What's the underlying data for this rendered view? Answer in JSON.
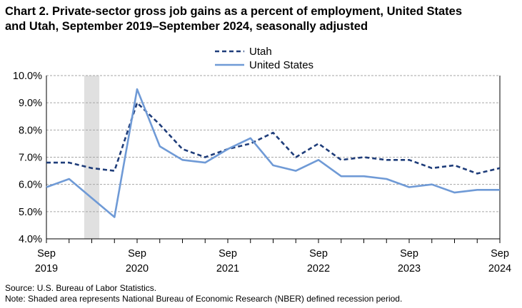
{
  "title": {
    "line1": "Chart 2. Private-sector gross job gains as a percent of employment, United States",
    "line2": "and Utah, September 2019–September 2024, seasonally adjusted"
  },
  "source": "Source: U.S. Bureau of Labor Statistics.",
  "note": "Note: Shaded area represents National Bureau of Economic Research (NBER) defined recession period.",
  "chart_data": {
    "type": "line",
    "x": [
      "Sep 2019",
      "Dec 2019",
      "Mar 2020",
      "Jun 2020",
      "Sep 2020",
      "Dec 2020",
      "Mar 2021",
      "Jun 2021",
      "Sep 2021",
      "Dec 2021",
      "Mar 2022",
      "Jun 2022",
      "Sep 2022",
      "Dec 2022",
      "Mar 2023",
      "Jun 2023",
      "Sep 2023",
      "Dec 2023",
      "Mar 2024",
      "Jun 2024",
      "Sep 2024"
    ],
    "series": [
      {
        "name": "Utah",
        "style": "dashed",
        "color": "#1f3d7a",
        "values": [
          6.8,
          6.8,
          6.6,
          6.5,
          9.0,
          8.2,
          7.3,
          7.0,
          7.3,
          7.5,
          7.9,
          7.0,
          7.5,
          6.9,
          7.0,
          6.9,
          6.9,
          6.6,
          6.7,
          6.4,
          6.6
        ]
      },
      {
        "name": "United States",
        "style": "solid",
        "color": "#6f9ad6",
        "values": [
          5.9,
          6.2,
          5.5,
          4.8,
          9.5,
          7.4,
          6.9,
          6.8,
          7.3,
          7.7,
          6.7,
          6.5,
          6.9,
          6.3,
          6.3,
          6.2,
          5.9,
          6.0,
          5.7,
          5.8,
          5.8
        ]
      }
    ],
    "y_ticks": [
      "4.0%",
      "5.0%",
      "6.0%",
      "7.0%",
      "8.0%",
      "9.0%",
      "10.0%"
    ],
    "ylim": [
      4.0,
      10.0
    ],
    "x_tick_labels": [
      {
        "month": "Sep",
        "year": "2019"
      },
      {
        "month": "Sep",
        "year": "2020"
      },
      {
        "month": "Sep",
        "year": "2021"
      },
      {
        "month": "Sep",
        "year": "2022"
      },
      {
        "month": "Sep",
        "year": "2023"
      },
      {
        "month": "Sep",
        "year": "2024"
      }
    ],
    "recession_shading": {
      "from": "Feb 2020",
      "to": "Apr 2020",
      "color": "#e0e0e0"
    },
    "grid": "horizontal dashed",
    "legend_position": "top-center"
  }
}
